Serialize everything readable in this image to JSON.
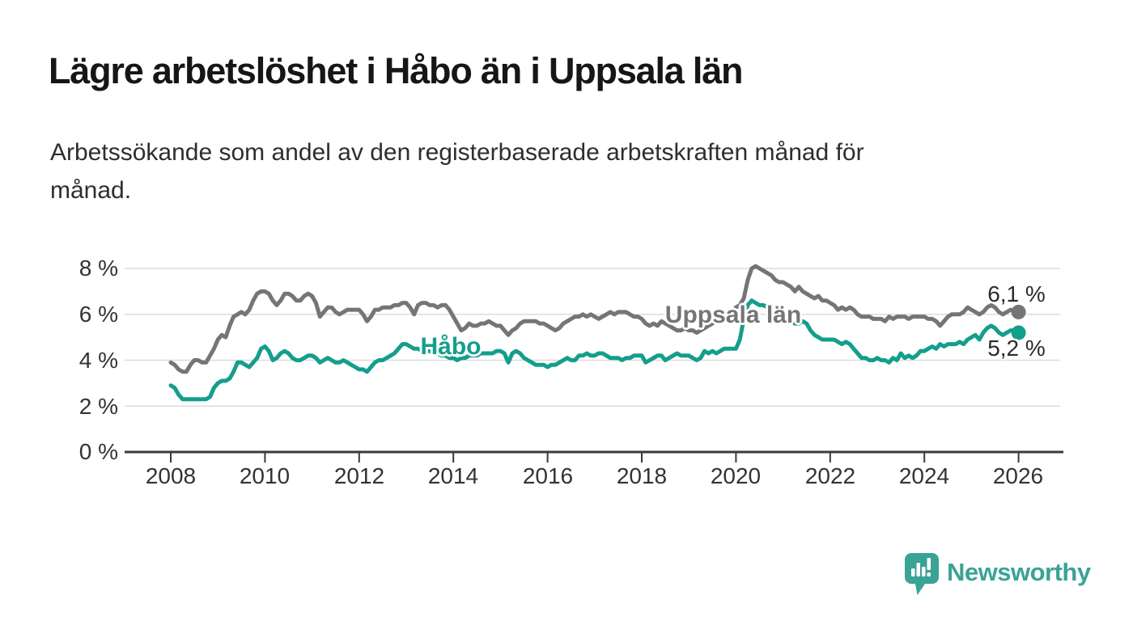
{
  "header": {
    "title": "Lägre arbetslöshet i Håbo än i Uppsala län",
    "subtitle_lines": [
      "Arbetssökande som andel av den registerbaserade arbetskraften månad för",
      "månad."
    ]
  },
  "chart_data": {
    "type": "line",
    "title": "Lägre arbetslöshet i Håbo än i Uppsala län",
    "subtitle": "Arbetssökande som andel av den registerbaserade arbetskraften månad för månad.",
    "unit": "%",
    "decimal_separator": ",",
    "x_start": {
      "year": 2008,
      "month": 1
    },
    "x_interval": "monthly",
    "xlim": [
      2007,
      2027
    ],
    "ylim": [
      0,
      8.6
    ],
    "grid": true,
    "legend_position": "inline-labels",
    "y_ticks": [
      0,
      2,
      4,
      6,
      8
    ],
    "y_tick_labels": [
      "8 %",
      "6 %",
      "4 %",
      "2 %",
      "0 %"
    ],
    "x_tick_years": [
      2008,
      2010,
      2012,
      2014,
      2016,
      2018,
      2020,
      2022,
      2024,
      2026
    ],
    "x_tick_labels": [
      "2008",
      "2010",
      "2012",
      "2014",
      "2016",
      "2018",
      "2020",
      "2022",
      "2024",
      "2026"
    ],
    "series": [
      {
        "name": "Uppsala län",
        "color": "#757575",
        "end_label": "6,1 %",
        "end_value": 6.1,
        "values": [
          3.9,
          3.8,
          3.6,
          3.5,
          3.5,
          3.8,
          4.0,
          4.0,
          3.9,
          3.9,
          4.2,
          4.5,
          4.9,
          5.1,
          5.0,
          5.5,
          5.9,
          6.0,
          6.1,
          6.0,
          6.2,
          6.6,
          6.9,
          7.0,
          7.0,
          6.9,
          6.6,
          6.4,
          6.6,
          6.9,
          6.9,
          6.8,
          6.6,
          6.6,
          6.8,
          6.9,
          6.8,
          6.5,
          5.9,
          6.1,
          6.3,
          6.3,
          6.1,
          6.0,
          6.1,
          6.2,
          6.2,
          6.2,
          6.2,
          6.0,
          5.7,
          5.9,
          6.2,
          6.2,
          6.3,
          6.3,
          6.3,
          6.4,
          6.4,
          6.5,
          6.5,
          6.3,
          6.0,
          6.4,
          6.5,
          6.5,
          6.4,
          6.4,
          6.3,
          6.4,
          6.4,
          6.2,
          5.9,
          5.6,
          5.3,
          5.4,
          5.6,
          5.5,
          5.5,
          5.6,
          5.6,
          5.7,
          5.6,
          5.5,
          5.5,
          5.3,
          5.1,
          5.3,
          5.4,
          5.6,
          5.7,
          5.7,
          5.7,
          5.7,
          5.6,
          5.6,
          5.5,
          5.4,
          5.3,
          5.4,
          5.6,
          5.7,
          5.8,
          5.9,
          5.9,
          6.0,
          5.9,
          6.0,
          5.9,
          5.8,
          5.9,
          6.0,
          6.1,
          6.0,
          6.1,
          6.1,
          6.1,
          6.0,
          5.9,
          5.9,
          5.8,
          5.6,
          5.5,
          5.6,
          5.5,
          5.7,
          5.6,
          5.5,
          5.4,
          5.3,
          5.3,
          5.4,
          5.3,
          5.3,
          5.2,
          5.3,
          5.4,
          5.5,
          5.6,
          5.7,
          5.8,
          5.9,
          6.0,
          6.1,
          6.3,
          6.4,
          6.7,
          7.5,
          8.0,
          8.1,
          8.0,
          7.9,
          7.8,
          7.7,
          7.5,
          7.4,
          7.4,
          7.3,
          7.2,
          7.0,
          7.2,
          7.0,
          6.9,
          6.8,
          6.7,
          6.8,
          6.6,
          6.6,
          6.5,
          6.4,
          6.2,
          6.3,
          6.2,
          6.3,
          6.2,
          6.0,
          5.9,
          5.9,
          5.9,
          5.8,
          5.8,
          5.8,
          5.7,
          5.9,
          5.8,
          5.9,
          5.9,
          5.9,
          5.8,
          5.9,
          5.9,
          5.9,
          5.9,
          5.8,
          5.8,
          5.7,
          5.5,
          5.7,
          5.9,
          6.0,
          6.0,
          6.0,
          6.1,
          6.3,
          6.2,
          6.1,
          6.0,
          6.1,
          6.3,
          6.4,
          6.3,
          6.1,
          6.0,
          6.1,
          6.2,
          6.1,
          6.1
        ]
      },
      {
        "name": "Håbo",
        "color": "#149e8c",
        "end_label": "5,2 %",
        "end_value": 5.2,
        "values": [
          2.9,
          2.8,
          2.5,
          2.3,
          2.3,
          2.3,
          2.3,
          2.3,
          2.3,
          2.3,
          2.4,
          2.8,
          3.0,
          3.1,
          3.1,
          3.2,
          3.5,
          3.9,
          3.9,
          3.8,
          3.7,
          3.9,
          4.1,
          4.5,
          4.6,
          4.4,
          4.0,
          4.1,
          4.3,
          4.4,
          4.3,
          4.1,
          4.0,
          4.0,
          4.1,
          4.2,
          4.2,
          4.1,
          3.9,
          4.0,
          4.1,
          4.0,
          3.9,
          3.9,
          4.0,
          3.9,
          3.8,
          3.7,
          3.6,
          3.6,
          3.5,
          3.7,
          3.9,
          4.0,
          4.0,
          4.1,
          4.2,
          4.3,
          4.5,
          4.7,
          4.7,
          4.6,
          4.5,
          4.5,
          4.4,
          4.4,
          4.4,
          4.3,
          4.3,
          4.2,
          4.2,
          4.1,
          4.1,
          4.0,
          4.1,
          4.1,
          4.2,
          4.2,
          4.2,
          4.3,
          4.3,
          4.3,
          4.3,
          4.4,
          4.4,
          4.3,
          3.9,
          4.3,
          4.4,
          4.3,
          4.1,
          4.0,
          3.9,
          3.8,
          3.8,
          3.8,
          3.7,
          3.8,
          3.8,
          3.9,
          4.0,
          4.1,
          4.0,
          4.0,
          4.2,
          4.2,
          4.3,
          4.2,
          4.2,
          4.3,
          4.3,
          4.2,
          4.1,
          4.1,
          4.1,
          4.0,
          4.1,
          4.1,
          4.2,
          4.2,
          4.2,
          3.9,
          4.0,
          4.1,
          4.2,
          4.2,
          4.0,
          4.1,
          4.2,
          4.3,
          4.2,
          4.2,
          4.2,
          4.1,
          4.0,
          4.1,
          4.4,
          4.3,
          4.4,
          4.3,
          4.4,
          4.5,
          4.5,
          4.5,
          4.5,
          4.9,
          5.8,
          6.4,
          6.6,
          6.5,
          6.4,
          6.4,
          6.3,
          6.1,
          6.0,
          5.9,
          5.9,
          5.8,
          5.7,
          5.6,
          5.6,
          5.7,
          5.6,
          5.3,
          5.1,
          5.0,
          4.9,
          4.9,
          4.9,
          4.9,
          4.8,
          4.7,
          4.8,
          4.7,
          4.5,
          4.3,
          4.1,
          4.1,
          4.0,
          4.0,
          4.1,
          4.0,
          4.0,
          3.9,
          4.1,
          4.0,
          4.3,
          4.1,
          4.2,
          4.1,
          4.2,
          4.4,
          4.4,
          4.5,
          4.6,
          4.5,
          4.7,
          4.6,
          4.7,
          4.7,
          4.7,
          4.8,
          4.7,
          4.9,
          5.0,
          5.1,
          4.9,
          5.2,
          5.4,
          5.5,
          5.4,
          5.2,
          5.1,
          5.2,
          5.3,
          5.3,
          5.2
        ]
      }
    ]
  },
  "branding": {
    "logo_text": "Newsworthy",
    "logo_color": "#3aa396",
    "logo_icon": "speech-bubble-bar-chart-icon"
  },
  "style": {
    "gridline_color": "#dcdcdc",
    "axis_color": "#3a3a3a",
    "background": "#ffffff"
  }
}
